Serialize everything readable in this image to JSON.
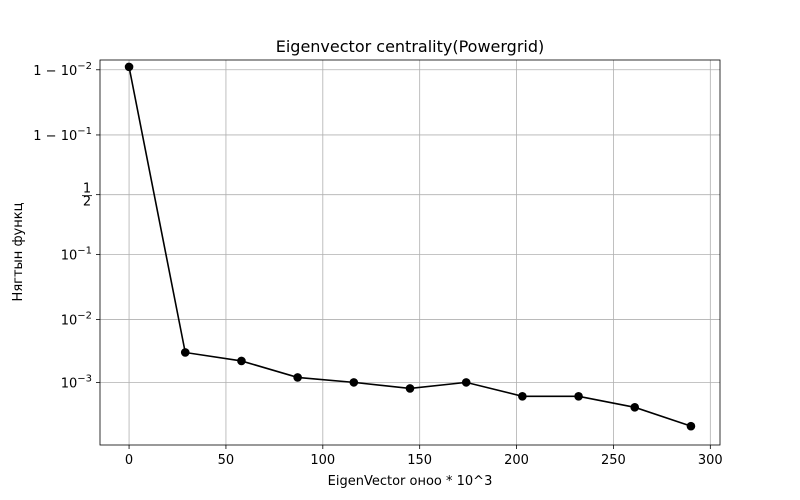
{
  "chart_data": {
    "type": "line",
    "title": "Eigenvector centrality(Powergrid)",
    "xlabel": "EigenVector оноо * 10^3",
    "ylabel": "Нягтын функц",
    "xlim": [
      -15,
      305
    ],
    "x_ticks": [
      0,
      50,
      100,
      150,
      200,
      250,
      300
    ],
    "x_tick_labels": [
      "0",
      "50",
      "100",
      "150",
      "200",
      "250",
      "300"
    ],
    "y_scale": "logit",
    "ylim": [
      0.0001,
      0.993
    ],
    "y_ticks": [
      0.001,
      0.01,
      0.1,
      0.5,
      0.9,
      0.99
    ],
    "y_tick_labels": [
      {
        "base": "10",
        "exp": "−3",
        "prefix": ""
      },
      {
        "base": "10",
        "exp": "−2",
        "prefix": ""
      },
      {
        "base": "10",
        "exp": "−1",
        "prefix": ""
      },
      {
        "frac": [
          "1",
          "2"
        ]
      },
      {
        "base": "10",
        "exp": "−1",
        "prefix": "1 − "
      },
      {
        "base": "10",
        "exp": "−2",
        "prefix": "1 − "
      }
    ],
    "grid": true,
    "line_color": "#000000",
    "marker": "circle",
    "series": [
      {
        "x": [
          0,
          29,
          58,
          87,
          116,
          145,
          174,
          203,
          232,
          261,
          290
        ],
        "y": [
          0.991,
          0.003,
          0.0022,
          0.0012,
          0.001,
          0.0008,
          0.001,
          0.0006,
          0.0006,
          0.0004,
          0.0002
        ]
      }
    ]
  }
}
